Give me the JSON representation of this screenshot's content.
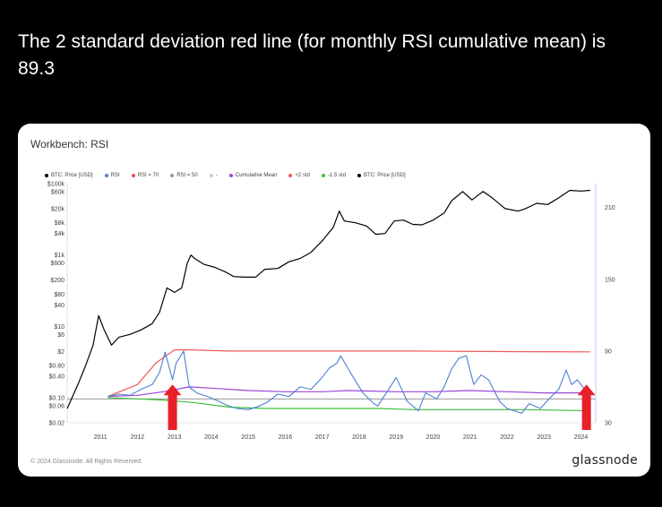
{
  "headline": "The 2 standard deviation red line (for monthly RSI cumulative mean) is 89.3",
  "card": {
    "title": "Workbench: RSI",
    "copyright": "© 2024 Glassnode. All Rights Reserved.",
    "logo": "glassnode"
  },
  "colors": {
    "btc": "#000000",
    "rsi": "#4a7fd4",
    "rsi70": "#e05050",
    "rsi50": "#999999",
    "mean": "#9b45d6",
    "plus2": "#f05a5a",
    "minus15": "#3bbf3b",
    "arrow": "#e8202a"
  },
  "legend": [
    {
      "label": "BTC: Price [USD]",
      "color": "#000000"
    },
    {
      "label": "RSI",
      "color": "#4a7fd4"
    },
    {
      "label": "RSI = 70",
      "color": "#e05050"
    },
    {
      "label": "RSI = 50",
      "color": "#999999"
    },
    {
      "label": "-",
      "color": "#cccccc"
    },
    {
      "label": "Cumulative Mean",
      "color": "#9b45d6"
    },
    {
      "label": "+2 std",
      "color": "#f05a5a"
    },
    {
      "label": "-1.5 std",
      "color": "#3bbf3b"
    },
    {
      "label": "BTC: Price [USD]",
      "color": "#000000"
    }
  ],
  "chart_data": {
    "type": "line",
    "x_ticks": [
      "2011",
      "2012",
      "2013",
      "2014",
      "2015",
      "2016",
      "2017",
      "2018",
      "2019",
      "2020",
      "2021",
      "2022",
      "2023",
      "2024"
    ],
    "y_left_ticks": [
      "$100k",
      "$60k",
      "$20k",
      "$8k",
      "$4k",
      "$1k",
      "$600",
      "$200",
      "$80",
      "$40",
      "$10",
      "$6",
      "$2",
      "$0.80",
      "$0.40",
      "$0.10",
      "$0.06",
      "$0.02"
    ],
    "y_right_ticks": [
      "210",
      "150",
      "90",
      "30"
    ],
    "y_left_scale": "log",
    "arrows": [
      2013.45,
      2024.65
    ],
    "series": [
      {
        "name": "BTC: Price [USD]",
        "axis": "left",
        "x": [
          2010.6,
          2010.9,
          2011.1,
          2011.3,
          2011.45,
          2011.6,
          2011.8,
          2012.0,
          2012.3,
          2012.6,
          2012.9,
          2013.1,
          2013.3,
          2013.5,
          2013.7,
          2013.85,
          2013.95,
          2014.05,
          2014.3,
          2014.6,
          2014.9,
          2015.1,
          2015.4,
          2015.7,
          2015.95,
          2016.3,
          2016.6,
          2016.9,
          2017.2,
          2017.5,
          2017.8,
          2017.96,
          2018.1,
          2018.4,
          2018.7,
          2018.95,
          2019.2,
          2019.45,
          2019.7,
          2019.95,
          2020.2,
          2020.5,
          2020.8,
          2021.0,
          2021.3,
          2021.55,
          2021.85,
          2022.1,
          2022.45,
          2022.8,
          2023.0,
          2023.3,
          2023.6,
          2023.9,
          2024.2,
          2024.5,
          2024.75
        ],
        "values": [
          0.05,
          0.25,
          0.8,
          3,
          20,
          8,
          3,
          5,
          6,
          8,
          12,
          25,
          120,
          90,
          120,
          600,
          1000,
          800,
          550,
          450,
          330,
          250,
          240,
          240,
          400,
          420,
          650,
          800,
          1200,
          2500,
          6000,
          17000,
          9000,
          8000,
          6500,
          3800,
          4000,
          9000,
          9500,
          7200,
          7000,
          9500,
          15000,
          33000,
          60000,
          35000,
          60000,
          40000,
          20000,
          17000,
          20000,
          28000,
          26000,
          40000,
          65000,
          62000,
          65000
        ]
      },
      {
        "name": "RSI",
        "axis": "right",
        "x": [
          2011.7,
          2012.0,
          2012.3,
          2012.6,
          2012.9,
          2013.1,
          2013.25,
          2013.45,
          2013.55,
          2013.75,
          2013.9,
          2014.1,
          2014.4,
          2014.7,
          2014.9,
          2015.2,
          2015.5,
          2015.8,
          2016.0,
          2016.3,
          2016.6,
          2016.9,
          2017.2,
          2017.5,
          2017.7,
          2017.9,
          2018.0,
          2018.3,
          2018.6,
          2018.9,
          2019.0,
          2019.3,
          2019.5,
          2019.8,
          2020.1,
          2020.3,
          2020.6,
          2020.8,
          2021.0,
          2021.2,
          2021.4,
          2021.6,
          2021.8,
          2022.0,
          2022.3,
          2022.5,
          2022.7,
          2022.9,
          2023.1,
          2023.4,
          2023.7,
          2023.9,
          2024.1,
          2024.25,
          2024.4,
          2024.6,
          2024.75
        ],
        "values": [
          52,
          54,
          53,
          58,
          62,
          72,
          89,
          66,
          80,
          90,
          60,
          55,
          52,
          48,
          45,
          42,
          41,
          44,
          47,
          54,
          52,
          60,
          58,
          68,
          76,
          80,
          86,
          70,
          55,
          46,
          44,
          58,
          68,
          48,
          40,
          55,
          50,
          60,
          75,
          84,
          86,
          62,
          70,
          66,
          48,
          42,
          40,
          38,
          46,
          42,
          52,
          58,
          74,
          62,
          66,
          58,
          56
        ]
      },
      {
        "name": "Cumulative Mean",
        "axis": "right",
        "x": [
          2011.7,
          2012.5,
          2013.2,
          2013.9,
          2014.5,
          2015.5,
          2016.5,
          2017.5,
          2018.2,
          2019.5,
          2020.5,
          2021.5,
          2022.5,
          2023.5,
          2024.75
        ],
        "values": [
          52,
          53,
          56,
          60,
          59,
          57,
          56,
          56,
          57,
          56,
          56,
          57,
          56,
          55,
          55
        ]
      },
      {
        "name": "+2 std",
        "axis": "right",
        "x": [
          2011.7,
          2012.5,
          2013.0,
          2013.5,
          2014.0,
          2015.0,
          2016.0,
          2017.0,
          2018.0,
          2019.0,
          2020.0,
          2021.0,
          2022.0,
          2023.0,
          2024.75
        ],
        "values": [
          52,
          62,
          80,
          91,
          91,
          90,
          90,
          90,
          90,
          90,
          90,
          89.8,
          89.6,
          89.5,
          89.3
        ]
      },
      {
        "name": "-1.5 std",
        "axis": "right",
        "x": [
          2011.7,
          2012.5,
          2013.2,
          2014.0,
          2015.0,
          2016.0,
          2017.0,
          2018.0,
          2019.0,
          2020.0,
          2021.0,
          2022.0,
          2023.0,
          2024.75
        ],
        "values": [
          51,
          50,
          49,
          47,
          43,
          42,
          42,
          42,
          42,
          41,
          41,
          41,
          41,
          40
        ]
      }
    ],
    "reference_line": {
      "name": "RSI = 50",
      "value": 50
    }
  }
}
